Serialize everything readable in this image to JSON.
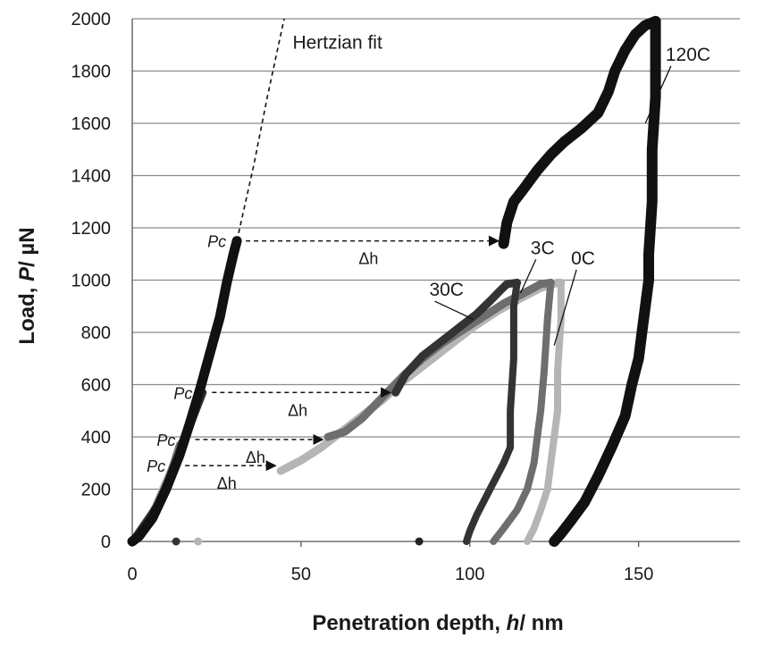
{
  "chart_data": {
    "type": "scatter",
    "title": "",
    "xlabel": "Penetration depth, h/ nm",
    "xlabel_parts": [
      "Penetration depth, ",
      "h",
      "/ nm"
    ],
    "ylabel": "Load, P/ µN",
    "ylabel_parts": [
      "Load, ",
      "P",
      "/ µN"
    ],
    "xlim": [
      0,
      180
    ],
    "ylim": [
      0,
      2000
    ],
    "x_ticks": [
      0,
      50,
      100,
      150
    ],
    "y_ticks": [
      0,
      200,
      400,
      600,
      800,
      1000,
      1200,
      1400,
      1600,
      1800,
      2000
    ],
    "grid": "horizontal",
    "series": [
      {
        "name": "120C",
        "color": "#111111",
        "loading": [
          [
            0,
            0
          ],
          [
            2,
            20
          ],
          [
            6,
            90
          ],
          [
            10,
            200
          ],
          [
            14,
            330
          ],
          [
            17,
            450
          ],
          [
            20,
            580
          ],
          [
            23,
            720
          ],
          [
            26,
            860
          ],
          [
            28,
            990
          ],
          [
            30,
            1100
          ],
          [
            31,
            1150
          ]
        ],
        "pop_in": [
          [
            110,
            1140
          ],
          [
            111,
            1220
          ],
          [
            113,
            1300
          ],
          [
            116,
            1350
          ],
          [
            120,
            1420
          ],
          [
            124,
            1480
          ],
          [
            128,
            1530
          ],
          [
            133,
            1580
          ],
          [
            138,
            1640
          ],
          [
            141,
            1720
          ],
          [
            143,
            1800
          ],
          [
            146,
            1880
          ],
          [
            149,
            1940
          ],
          [
            152,
            1975
          ],
          [
            155,
            1990
          ]
        ],
        "unloading": [
          [
            155,
            1990
          ],
          [
            155,
            1900
          ],
          [
            155,
            1700
          ],
          [
            154,
            1500
          ],
          [
            154,
            1300
          ],
          [
            153,
            1100
          ],
          [
            153,
            1000
          ],
          [
            152,
            900
          ],
          [
            151,
            800
          ],
          [
            150,
            700
          ],
          [
            148,
            600
          ],
          [
            146,
            480
          ],
          [
            142,
            360
          ],
          [
            138,
            250
          ],
          [
            134,
            150
          ],
          [
            130,
            80
          ],
          [
            127,
            30
          ],
          [
            125,
            0
          ]
        ]
      },
      {
        "name": "30C",
        "color": "#333333",
        "loading": [
          [
            0,
            0
          ],
          [
            8,
            150
          ],
          [
            14,
            330
          ],
          [
            18,
            470
          ],
          [
            21,
            570
          ]
        ],
        "pop_in": [
          [
            78,
            570
          ],
          [
            81,
            640
          ],
          [
            86,
            710
          ],
          [
            92,
            770
          ],
          [
            97,
            820
          ],
          [
            102,
            870
          ],
          [
            106,
            920
          ],
          [
            109,
            960
          ],
          [
            111,
            985
          ],
          [
            114,
            990
          ]
        ],
        "unloading": [
          [
            114,
            990
          ],
          [
            113,
            900
          ],
          [
            113,
            700
          ],
          [
            112,
            500
          ],
          [
            112,
            360
          ],
          [
            110,
            300
          ],
          [
            106,
            200
          ],
          [
            102,
            100
          ],
          [
            100,
            40
          ],
          [
            99,
            0
          ]
        ]
      },
      {
        "name": "3C",
        "color": "#6e6e6e",
        "loading": [
          [
            0,
            0
          ],
          [
            6,
            100
          ],
          [
            11,
            250
          ],
          [
            14,
            370
          ],
          [
            16,
            400
          ]
        ],
        "pop_in": [
          [
            58,
            400
          ],
          [
            63,
            420
          ],
          [
            68,
            470
          ],
          [
            74,
            550
          ],
          [
            80,
            630
          ],
          [
            86,
            700
          ],
          [
            92,
            760
          ],
          [
            98,
            810
          ],
          [
            104,
            860
          ],
          [
            110,
            910
          ],
          [
            116,
            950
          ],
          [
            121,
            985
          ],
          [
            124,
            990
          ]
        ],
        "unloading": [
          [
            124,
            990
          ],
          [
            123,
            850
          ],
          [
            122,
            650
          ],
          [
            121,
            500
          ],
          [
            120,
            400
          ],
          [
            119,
            300
          ],
          [
            117,
            200
          ],
          [
            114,
            120
          ],
          [
            110,
            50
          ],
          [
            107,
            0
          ]
        ]
      },
      {
        "name": "0C",
        "color": "#b5b5b5",
        "loading": [
          [
            0,
            0
          ],
          [
            5,
            80
          ],
          [
            9,
            200
          ],
          [
            12,
            290
          ],
          [
            13,
            290
          ]
        ],
        "pop_in": [
          [
            44,
            270
          ],
          [
            50,
            310
          ],
          [
            56,
            360
          ],
          [
            62,
            420
          ],
          [
            68,
            480
          ],
          [
            74,
            540
          ],
          [
            80,
            610
          ],
          [
            87,
            680
          ],
          [
            94,
            750
          ],
          [
            101,
            820
          ],
          [
            108,
            880
          ],
          [
            115,
            930
          ],
          [
            121,
            970
          ],
          [
            126,
            990
          ],
          [
            127,
            990
          ]
        ],
        "unloading": [
          [
            127,
            990
          ],
          [
            127,
            850
          ],
          [
            126,
            650
          ],
          [
            126,
            500
          ],
          [
            125,
            400
          ],
          [
            124,
            300
          ],
          [
            123,
            200
          ],
          [
            121,
            120
          ],
          [
            119,
            50
          ],
          [
            117,
            0
          ]
        ]
      }
    ],
    "stray_points": [
      {
        "x": 13,
        "y": 0,
        "color": "#333333"
      },
      {
        "x": 19.5,
        "y": 0,
        "color": "#b5b5b5"
      },
      {
        "x": 85,
        "y": 0,
        "color": "#222222"
      }
    ],
    "hertzian_fit": {
      "label": "Hertzian fit",
      "points": [
        [
          31,
          1150
        ],
        [
          36,
          1440
        ],
        [
          40,
          1700
        ],
        [
          45,
          2000
        ]
      ]
    },
    "pop_in_events": [
      {
        "pc_label": "Pc",
        "dh_label": "Δh",
        "y": 1150,
        "x_from": 31,
        "x_to": 109
      },
      {
        "pc_label": "Pc",
        "dh_label": "Δh",
        "y": 570,
        "x_from": 21,
        "x_to": 77
      },
      {
        "pc_label": "Pc",
        "dh_label": "Δh",
        "y": 390,
        "x_from": 16,
        "x_to": 57
      },
      {
        "pc_label": "Pc",
        "dh_label": "Δh",
        "y": 290,
        "x_from": 13,
        "x_to": 43
      }
    ],
    "series_labels": [
      {
        "text": "120C",
        "x": 158,
        "y": 1840,
        "pointer_to": [
          152,
          1600
        ]
      },
      {
        "text": "30C",
        "x": 88,
        "y": 940,
        "pointer_to": [
          101,
          850
        ]
      },
      {
        "text": "3C",
        "x": 118,
        "y": 1100,
        "pointer_to": [
          115,
          950
        ]
      },
      {
        "text": "0C",
        "x": 130,
        "y": 1060,
        "pointer_to": [
          125,
          750
        ]
      }
    ]
  }
}
